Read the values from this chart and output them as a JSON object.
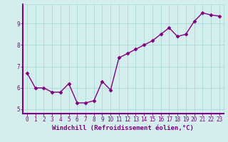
{
  "x": [
    0,
    1,
    2,
    3,
    4,
    5,
    6,
    7,
    8,
    9,
    10,
    11,
    12,
    13,
    14,
    15,
    16,
    17,
    18,
    19,
    20,
    21,
    22,
    23
  ],
  "y": [
    6.7,
    6.0,
    6.0,
    5.8,
    5.8,
    6.2,
    5.3,
    5.3,
    5.4,
    6.3,
    5.9,
    7.4,
    7.6,
    7.8,
    8.0,
    8.2,
    8.5,
    8.8,
    8.4,
    8.5,
    9.1,
    9.5,
    9.4,
    9.35
  ],
  "line_color": "#800080",
  "marker": "D",
  "marker_size": 2.5,
  "bg_color": "#d4eeee",
  "grid_color": "#a8d8d8",
  "xlabel": "Windchill (Refroidissement éolien,°C)",
  "xlabel_fontsize": 6.5,
  "tick_fontsize": 5.5,
  "ylim": [
    4.8,
    9.9
  ],
  "xlim": [
    -0.5,
    23.5
  ],
  "yticks": [
    5,
    6,
    7,
    8,
    9
  ],
  "xticks": [
    0,
    1,
    2,
    3,
    4,
    5,
    6,
    7,
    8,
    9,
    10,
    11,
    12,
    13,
    14,
    15,
    16,
    17,
    18,
    19,
    20,
    21,
    22,
    23
  ],
  "spine_color": "#800080",
  "label_color": "#800080",
  "linewidth": 1.0
}
